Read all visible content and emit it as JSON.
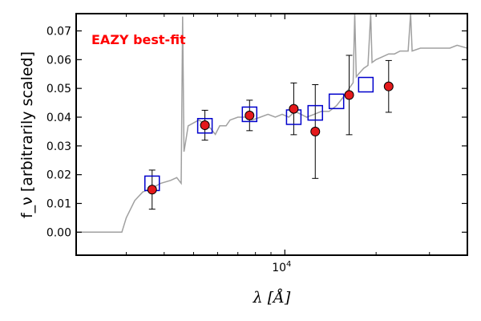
{
  "chart_data": {
    "type": "scatter",
    "title": "",
    "xlabel": "λ [Å]",
    "ylabel": "f_ν [arbitrarily scaled]",
    "xscale": "log",
    "xlim": [
      2050,
      40000
    ],
    "ylim": [
      -0.008,
      0.076
    ],
    "xticks": [
      {
        "value": 10000,
        "label": "10^4"
      }
    ],
    "yticks": [
      {
        "value": 0.0,
        "label": "0.00"
      },
      {
        "value": 0.01,
        "label": "0.01"
      },
      {
        "value": 0.02,
        "label": "0.02"
      },
      {
        "value": 0.03,
        "label": "0.03"
      },
      {
        "value": 0.04,
        "label": "0.04"
      },
      {
        "value": 0.05,
        "label": "0.05"
      },
      {
        "value": 0.06,
        "label": "0.06"
      },
      {
        "value": 0.07,
        "label": "0.07"
      }
    ],
    "grid": false,
    "annotation": {
      "text": "EAZY best-fit",
      "color": "#ff0000",
      "position": "top-left"
    },
    "colors": {
      "model": "#a0a0a0",
      "observed": "#e41a1c",
      "template": "#0000cc"
    },
    "model_sed": [
      [
        2050,
        0.0
      ],
      [
        2900,
        0.0
      ],
      [
        3000,
        0.005
      ],
      [
        3200,
        0.011
      ],
      [
        3400,
        0.014
      ],
      [
        3600,
        0.015
      ],
      [
        3900,
        0.017
      ],
      [
        4200,
        0.018
      ],
      [
        4400,
        0.019
      ],
      [
        4550,
        0.017
      ],
      [
        4600,
        0.075
      ],
      [
        4650,
        0.028
      ],
      [
        4700,
        0.031
      ],
      [
        4800,
        0.037
      ],
      [
        5000,
        0.038
      ],
      [
        5200,
        0.039
      ],
      [
        5400,
        0.038
      ],
      [
        5700,
        0.036
      ],
      [
        5900,
        0.034
      ],
      [
        6100,
        0.037
      ],
      [
        6400,
        0.037
      ],
      [
        6600,
        0.039
      ],
      [
        7000,
        0.04
      ],
      [
        7400,
        0.04
      ],
      [
        7800,
        0.039
      ],
      [
        8300,
        0.04
      ],
      [
        8800,
        0.041
      ],
      [
        9300,
        0.04
      ],
      [
        9800,
        0.041
      ],
      [
        10300,
        0.04
      ],
      [
        10800,
        0.042
      ],
      [
        11300,
        0.041
      ],
      [
        11800,
        0.04
      ],
      [
        12500,
        0.041
      ],
      [
        13200,
        0.042
      ],
      [
        14000,
        0.042
      ],
      [
        14800,
        0.044
      ],
      [
        15600,
        0.047
      ],
      [
        16300,
        0.05
      ],
      [
        16800,
        0.052
      ],
      [
        17000,
        0.076
      ],
      [
        17200,
        0.054
      ],
      [
        17500,
        0.055
      ],
      [
        18200,
        0.057
      ],
      [
        18800,
        0.058
      ],
      [
        19200,
        0.076
      ],
      [
        19400,
        0.059
      ],
      [
        20000,
        0.06
      ],
      [
        21000,
        0.061
      ],
      [
        22000,
        0.062
      ],
      [
        23000,
        0.062
      ],
      [
        24000,
        0.063
      ],
      [
        25500,
        0.063
      ],
      [
        26000,
        0.076
      ],
      [
        26300,
        0.063
      ],
      [
        28000,
        0.064
      ],
      [
        30000,
        0.064
      ],
      [
        33000,
        0.064
      ],
      [
        35000,
        0.064
      ],
      [
        37000,
        0.065
      ],
      [
        40000,
        0.064
      ]
    ],
    "observed": [
      {
        "x": 3650,
        "y": 0.0148,
        "err": 0.0068
      },
      {
        "x": 5450,
        "y": 0.0372,
        "err": 0.0052
      },
      {
        "x": 7650,
        "y": 0.0406,
        "err": 0.0053
      },
      {
        "x": 10700,
        "y": 0.0429,
        "err": 0.009
      },
      {
        "x": 12600,
        "y": 0.035,
        "err": 0.0163
      },
      {
        "x": 16300,
        "y": 0.0477,
        "err": 0.0138
      },
      {
        "x": 22000,
        "y": 0.0507,
        "err": 0.009
      }
    ],
    "template_fluxes": [
      {
        "x": 3650,
        "y": 0.017
      },
      {
        "x": 5450,
        "y": 0.037
      },
      {
        "x": 7650,
        "y": 0.041
      },
      {
        "x": 10700,
        "y": 0.04
      },
      {
        "x": 12600,
        "y": 0.0415
      },
      {
        "x": 14800,
        "y": 0.0455
      },
      {
        "x": 18500,
        "y": 0.0513
      }
    ]
  }
}
